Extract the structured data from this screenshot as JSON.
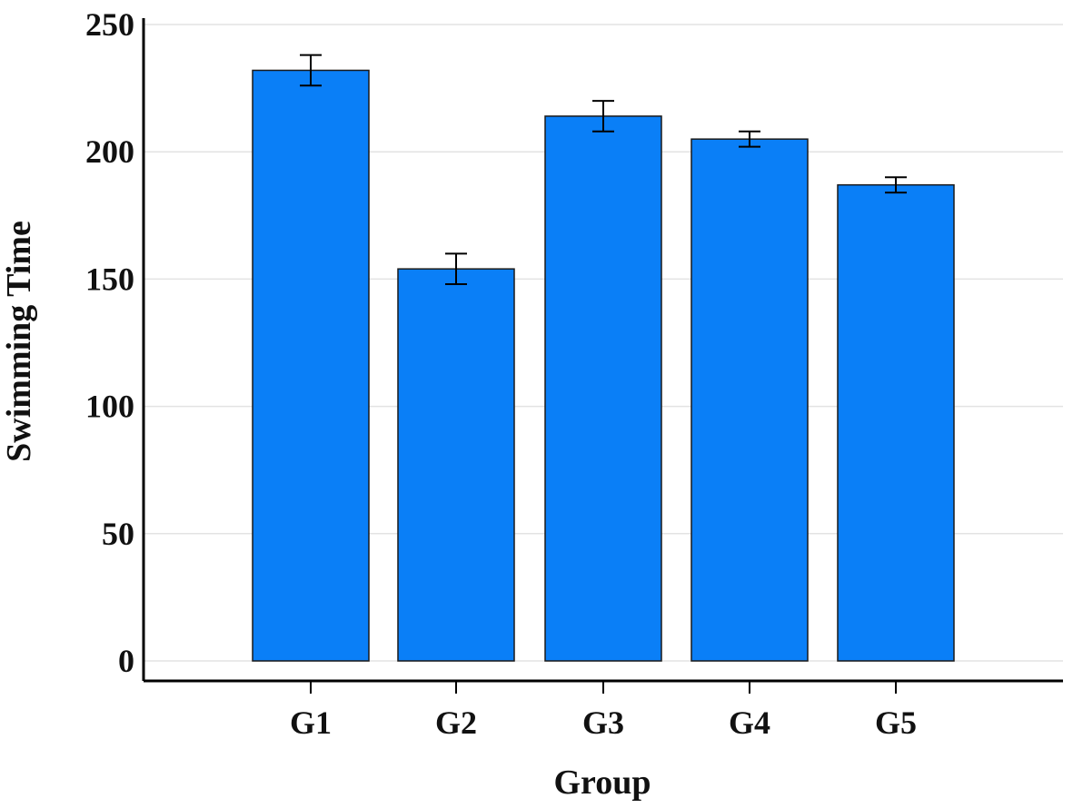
{
  "chart_data": {
    "type": "bar",
    "title": "",
    "xlabel": "Group",
    "ylabel": "Swimming Time",
    "categories": [
      "G1",
      "G2",
      "G3",
      "G4",
      "G5"
    ],
    "values": [
      232,
      154,
      214,
      205,
      187
    ],
    "error_low": [
      226,
      148,
      208,
      202,
      184
    ],
    "error_high": [
      238,
      160,
      220,
      208,
      190
    ],
    "ylim": [
      0,
      250
    ],
    "yticks": [
      "0",
      "50",
      "100",
      "150",
      "200",
      "250"
    ],
    "grid": true,
    "legend": "none",
    "bar_color": "#0a7ff7"
  }
}
